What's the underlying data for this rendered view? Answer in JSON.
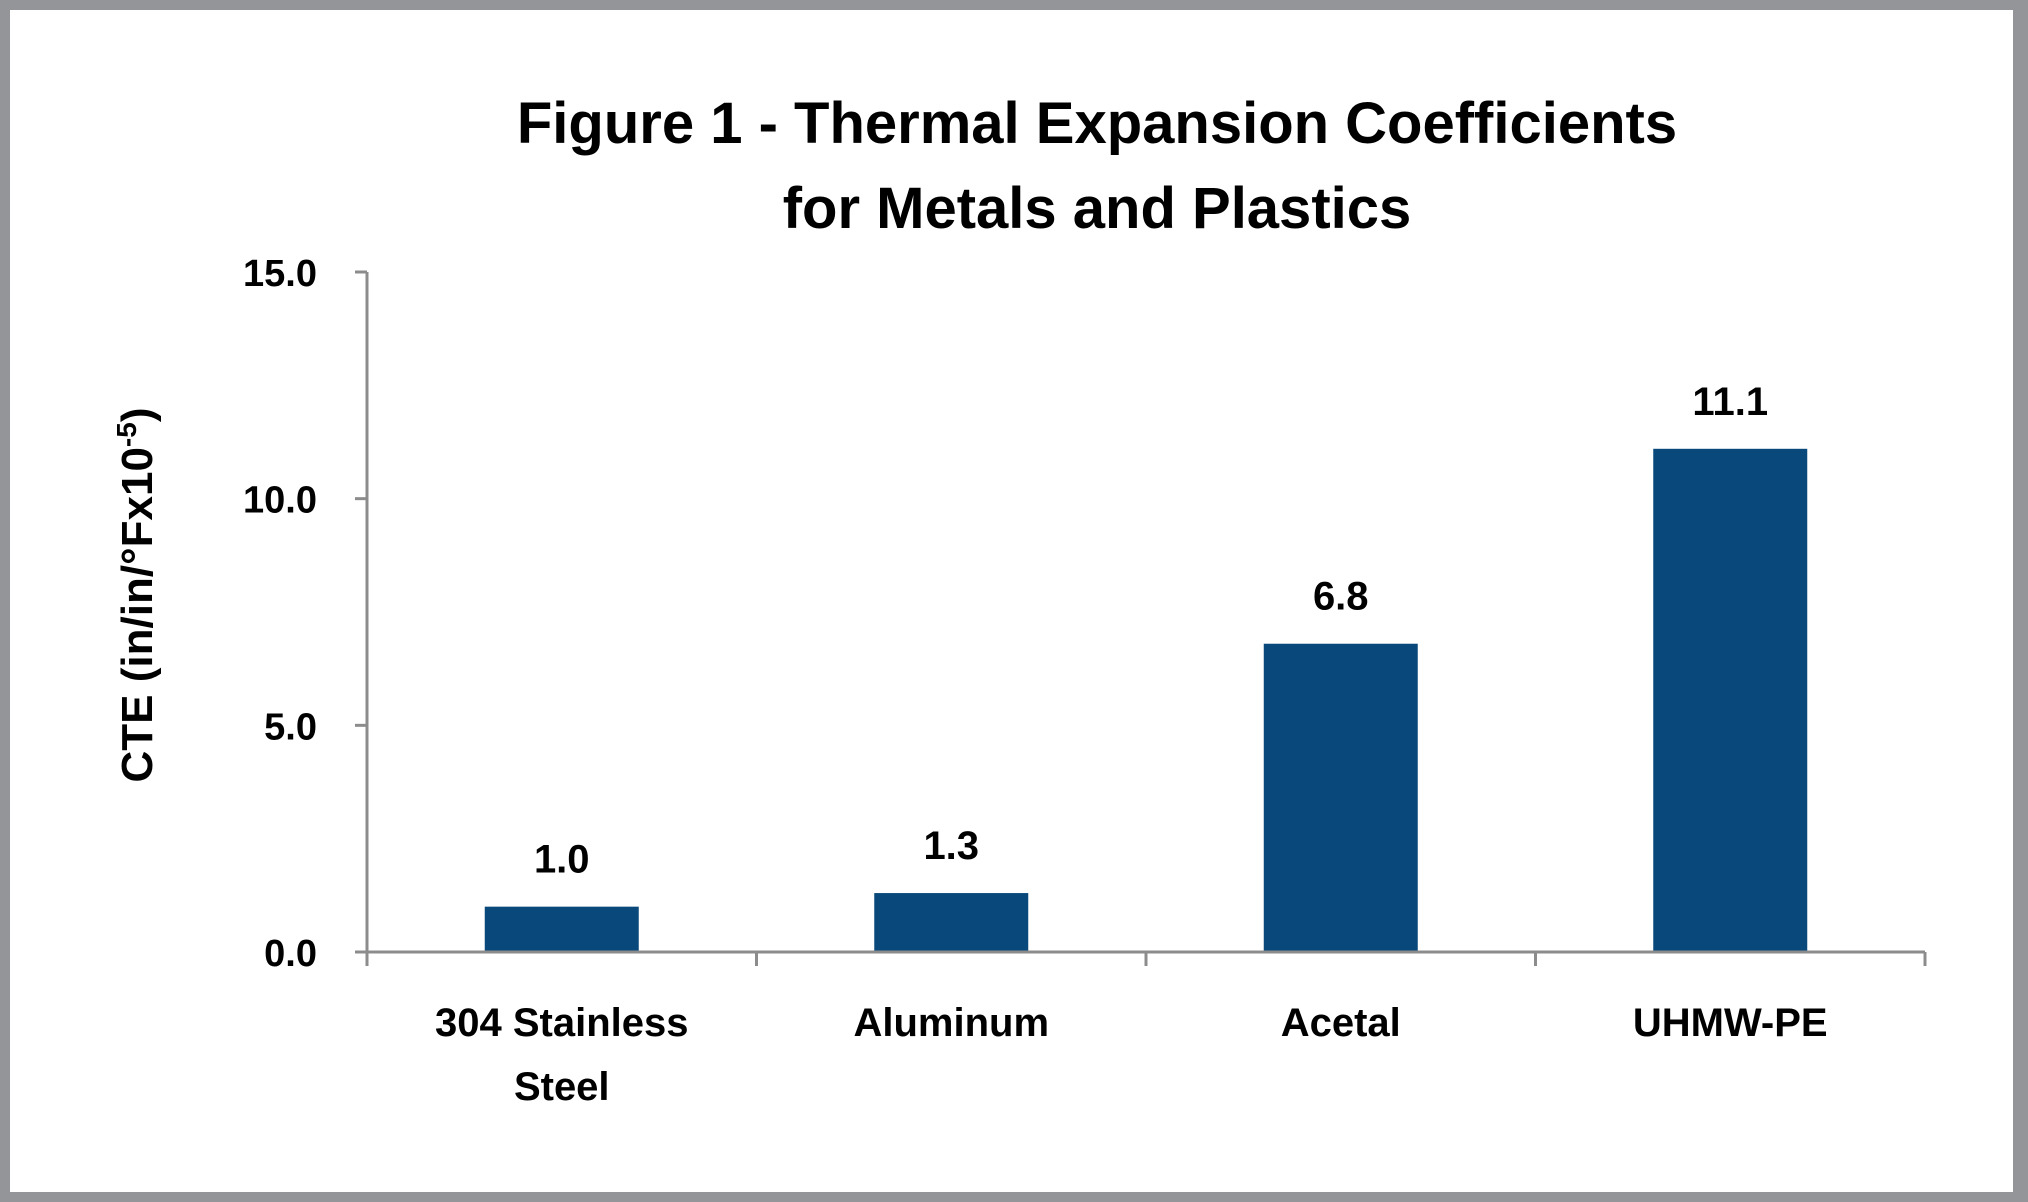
{
  "chart_data": {
    "type": "bar",
    "title_lines": [
      "Figure 1 - Thermal Expansion Coefficients",
      "for Metals and Plastics"
    ],
    "ylabel": "CTE (in/in/°Fx10",
    "ylabel_superscript": "-5",
    "ylabel_close": ")",
    "xlabel": "",
    "categories": [
      [
        "304 Stainless",
        "Steel"
      ],
      [
        "Aluminum"
      ],
      [
        "Acetal"
      ],
      [
        "UHMW-PE"
      ]
    ],
    "values": [
      1.0,
      1.3,
      6.8,
      11.1
    ],
    "data_labels": [
      "1.0",
      "1.3",
      "6.8",
      "11.1"
    ],
    "ylim": [
      0,
      15
    ],
    "yticks": [
      "0.0",
      "5.0",
      "10.0",
      "15.0"
    ],
    "grid": false,
    "legend": "none",
    "colors": {
      "bar": "#08487a",
      "axis": "#8c8c8c",
      "border": "#939598"
    }
  }
}
